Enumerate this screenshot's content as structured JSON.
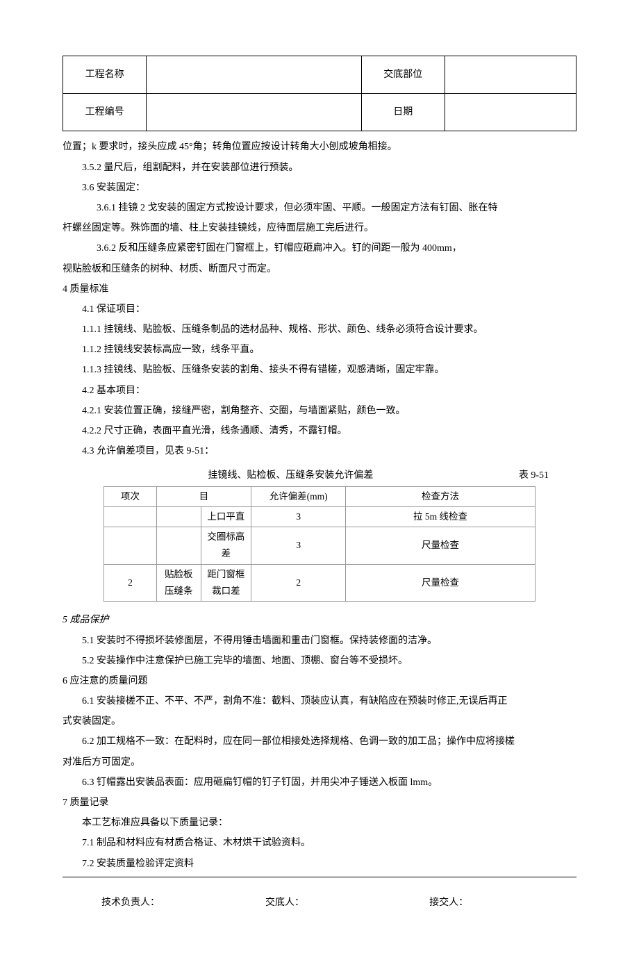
{
  "header": {
    "row1_label1": "工程名称",
    "row1_value1": "",
    "row1_label2": "交底部位",
    "row1_value2": "",
    "row2_label1": "工程编号",
    "row2_value1": "",
    "row2_label2": "日期",
    "row2_value2": ""
  },
  "body": {
    "p1": "位置；k 要求时，接头应成 45°角；转角位置应按设计转角大小刨成坡角相接。",
    "p2": "3.5.2 量尺后，组割配料，并在安装部位进行预装。",
    "p3": "3.6 安装固定：",
    "p4": "3.6.1  挂镜 2 戈安装的固定方式按设计要求，但必须牢固、平顺。一般固定方法有钉固、胀在特",
    "p5": "杆螺丝固定等。殊饰面的墙、柱上安装挂镜线，应待面层施工完后进行。",
    "p6": "3.6.2  反和压缝条应紧密钉固在门窗框上，钉帽应砸扁冲入。钉的间距一般为 400mm，",
    "p7": "视贴脸板和压缝条的树种、材质、断面尺寸而定。",
    "s4": "4 质量标准",
    "s41": "4.1 保证项目：",
    "s411": "1.1.1    挂镜线、贴脸板、压缝条制品的选材品种、规格、形状、颜色、线条必须符合设计要求。",
    "s412": "1.1.2    挂镜线安装标高应一致，线条平直。",
    "s413": "1.1.3    挂镜线、贴脸板、压缝条安装的割角、接头不得有错槎，观感清晰，固定牢靠。",
    "s42": "4.2    基本项目：",
    "s421": "4.2.1    安装位置正确，接缝严密，割角整齐、交圈，与墙面紧贴，颜色一致。",
    "s422": "4.2.2    尺寸正确，表面平直光滑，线条通顺、清秀，不露钉帽。",
    "s43": "4.3    允许偏差项目，见表 9-51：",
    "tolerance_title": "挂镜线、贴检板、压缝条安装允许偏差",
    "tolerance_table_num": "表 9-51",
    "s5": "5 成品保护",
    "s51": "5.1    安装时不得损坏装修面层，不得用锤击墙面和重击门窗框。保持装修面的洁净。",
    "s52": "5.2    安装操作中注意保护已施工完毕的墙面、地面、顶棚、窗台等不受损坏。",
    "s6": "6 应注意的质量问题",
    "s61": "6.1    安装接槎不正、不平、不严，割角不准：截料、顶装应认真，有缺陷应在预装时修正,无误后再正",
    "s61b": "式安装固定。",
    "s62": "6.2    加工规格不一致：在配料时，应在同一部位相接处选择规格、色调一致的加工品；操作中应将接槎",
    "s62b": "对准后方可固定。",
    "s63": "6.3    钉帽露出安装品表面：应用砸扁钉帽的钉子钉固，并用尖冲子锤送入板面 lmm。",
    "s7": "7 质量记录",
    "s7a": "本工艺标准应具备以下质量记录：",
    "s71": "7.1    制品和材料应有材质合格证、木材烘干试验资料。",
    "s72": "7.2    安装质量检验评定资料"
  },
  "tolerance_table": {
    "headers": [
      "项次",
      "目",
      "",
      "允许偏差(mm)",
      "检查方法"
    ],
    "rows": [
      [
        "",
        "",
        "上口平直",
        "3",
        "拉 5m 线检查"
      ],
      [
        "",
        "",
        "交圈标高差",
        "3",
        "尺量检查"
      ],
      [
        "2",
        "贴脸板压缝条",
        "距门窗框裁口差",
        "2",
        "尺量检查"
      ]
    ]
  },
  "signatures": {
    "s1": "技术负责人：",
    "s2": "交底人：",
    "s3": "接交人："
  }
}
